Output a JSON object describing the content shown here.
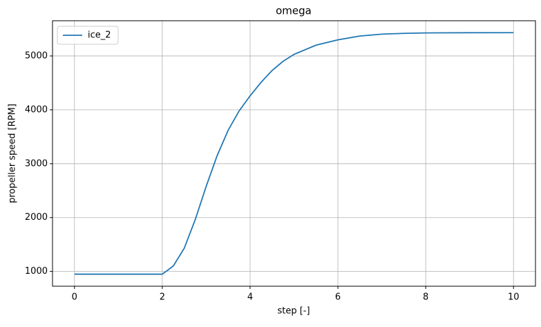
{
  "chart_data": {
    "type": "line",
    "title": "omega",
    "xlabel": "step [-]",
    "ylabel": "propeller speed [RPM]",
    "x": [
      0,
      0.5,
      1,
      1.5,
      2,
      2.25,
      2.5,
      2.75,
      3,
      3.25,
      3.5,
      3.75,
      4,
      4.25,
      4.5,
      4.75,
      5,
      5.5,
      6,
      6.5,
      7,
      7.5,
      8,
      9,
      10
    ],
    "series": [
      {
        "name": "ice_2",
        "color": "#1f77b4",
        "values": [
          950,
          950,
          950,
          950,
          950,
          1100,
          1430,
          1960,
          2580,
          3150,
          3620,
          3980,
          4260,
          4510,
          4730,
          4900,
          5030,
          5200,
          5300,
          5370,
          5405,
          5420,
          5428,
          5432,
          5433
        ]
      }
    ],
    "xlim": [
      -0.5,
      10.5
    ],
    "xticks": [
      0,
      2,
      4,
      6,
      8,
      10
    ],
    "ylim": [
      726,
      5654
    ],
    "yticks": [
      1000,
      2000,
      3000,
      4000,
      5000
    ],
    "grid": true,
    "legend": "upper left"
  }
}
